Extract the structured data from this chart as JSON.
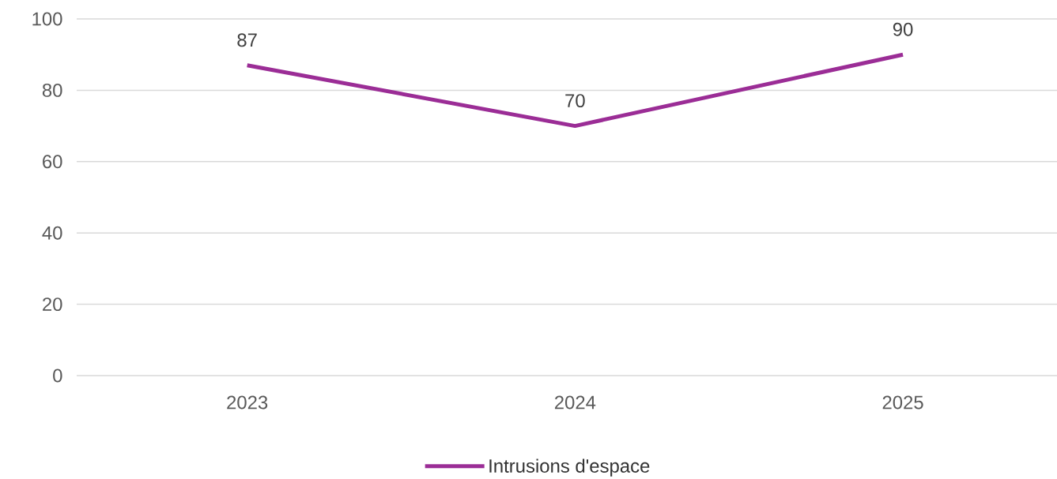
{
  "chart_data": {
    "type": "line",
    "categories": [
      "2023",
      "2024",
      "2025"
    ],
    "series": [
      {
        "name": "Intrusions d'espace",
        "color": "#9b2d96",
        "values": [
          87,
          70,
          90
        ]
      }
    ],
    "ylim": [
      0,
      100
    ],
    "yticks": [
      0,
      20,
      40,
      60,
      80,
      100
    ],
    "grid": "y",
    "legend": "bottom",
    "data_labels": true
  }
}
